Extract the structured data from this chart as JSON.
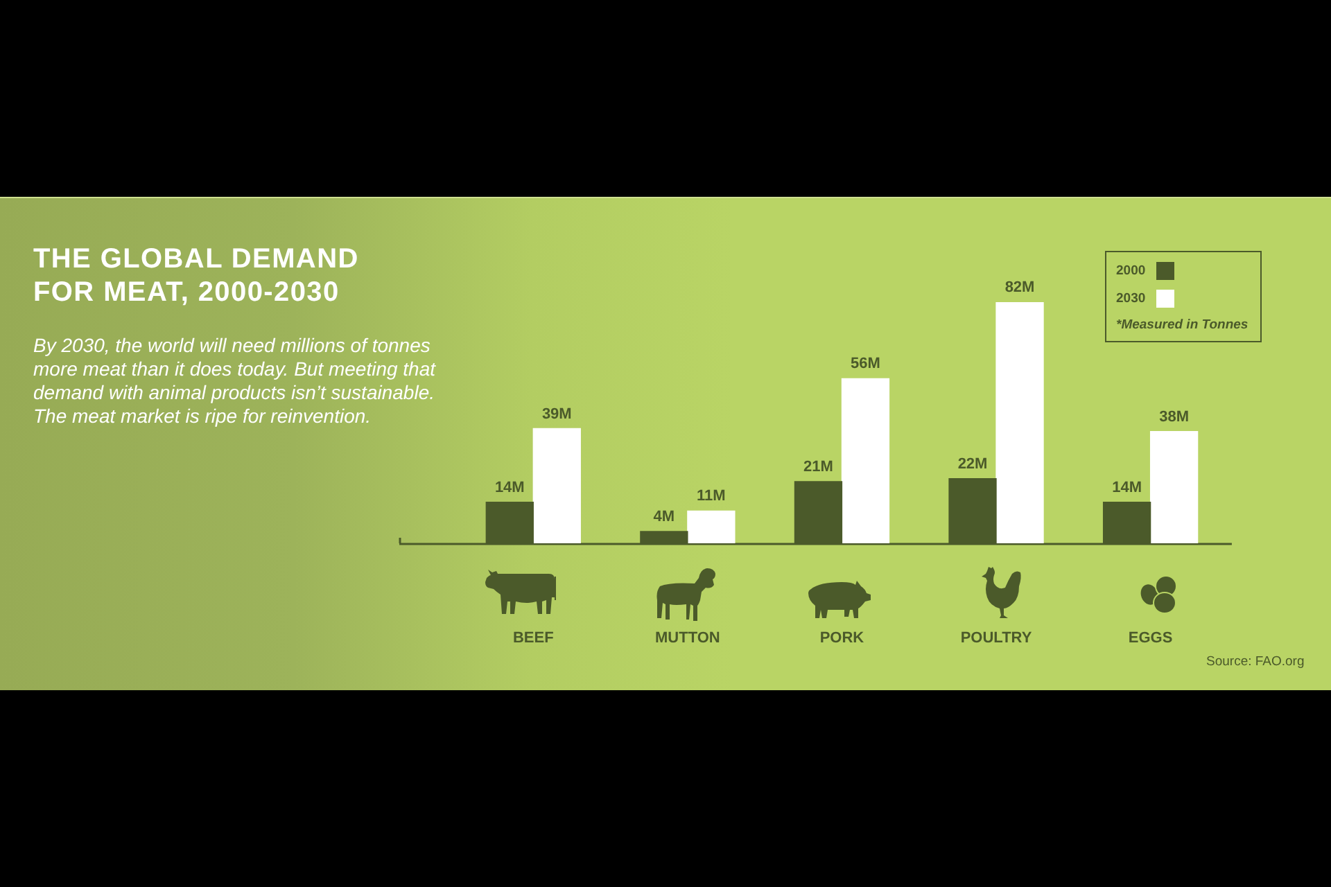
{
  "chart_data": {
    "type": "bar",
    "title": "THE GLOBAL DEMAND FOR MEAT, 2000-2030",
    "subtitle": "By 2030, the world will need millions of tonnes more meat than it does today. But meeting that demand with animal products isn’t sustainable. The meat market is ripe for reinvention.",
    "categories": [
      "BEEF",
      "MUTTON",
      "PORK",
      "POULTRY",
      "EGGS"
    ],
    "series": [
      {
        "name": "2000",
        "color": "#4b5a2a",
        "values": [
          14,
          4,
          21,
          22,
          14
        ],
        "value_labels": [
          "14M",
          "4M",
          "21M",
          "22M",
          "14M"
        ]
      },
      {
        "name": "2030",
        "color": "#ffffff",
        "values": [
          39,
          11,
          56,
          82,
          38
        ],
        "value_labels": [
          "39M",
          "11M",
          "56M",
          "82M",
          "38M"
        ]
      }
    ],
    "legend": "top right",
    "tick_labels": "x",
    "annotations": [
      "*Measured in Tonnes",
      "Source: FAO.org"
    ]
  }
}
